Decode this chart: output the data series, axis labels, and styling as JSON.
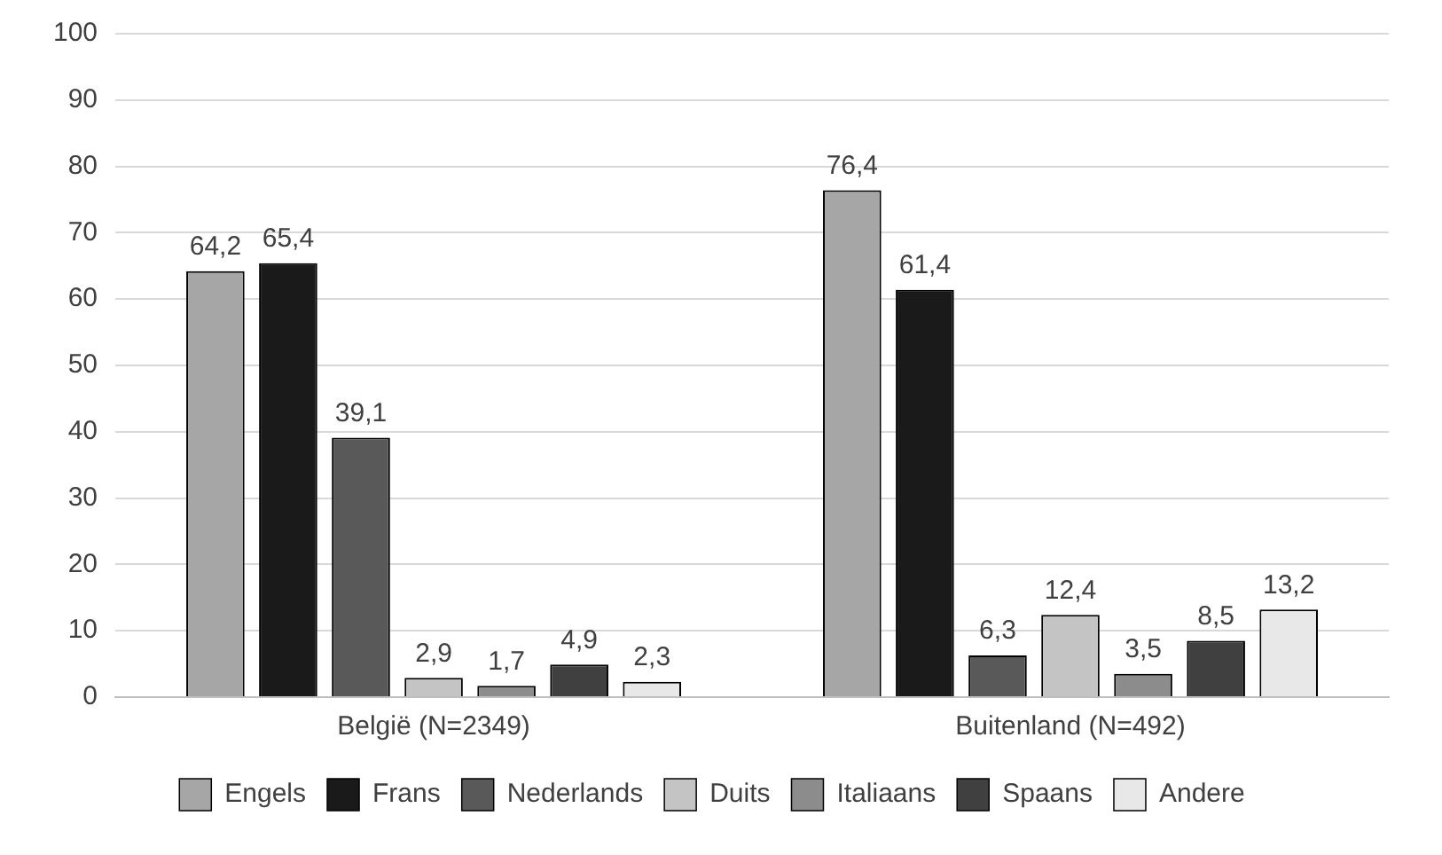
{
  "chart_data": {
    "type": "bar",
    "categories": [
      "België (N=2349)",
      "Buitenland (N=492)"
    ],
    "series": [
      {
        "name": "Engels",
        "color": "#a6a6a6",
        "values": [
          64.2,
          76.4
        ],
        "value_labels": [
          "64,2",
          "76,4"
        ]
      },
      {
        "name": "Frans",
        "color": "#1a1a1a",
        "values": [
          65.4,
          61.4
        ],
        "value_labels": [
          "65,4",
          "61,4"
        ]
      },
      {
        "name": "Nederlands",
        "color": "#595959",
        "values": [
          39.1,
          6.3
        ],
        "value_labels": [
          "39,1",
          "6,3"
        ]
      },
      {
        "name": "Duits",
        "color": "#c4c4c4",
        "values": [
          2.9,
          12.4
        ],
        "value_labels": [
          "2,9",
          "12,4"
        ]
      },
      {
        "name": "Italiaans",
        "color": "#8c8c8c",
        "values": [
          1.7,
          3.5
        ],
        "value_labels": [
          "1,7",
          "3,5"
        ]
      },
      {
        "name": "Spaans",
        "color": "#404040",
        "values": [
          4.9,
          8.5
        ],
        "value_labels": [
          "4,9",
          "8,5"
        ]
      },
      {
        "name": "Andere",
        "color": "#e8e8e8",
        "values": [
          2.3,
          13.2
        ],
        "value_labels": [
          "2,3",
          "13,2"
        ]
      }
    ],
    "ylim": [
      0,
      100
    ],
    "yticks": [
      0,
      10,
      20,
      30,
      40,
      50,
      60,
      70,
      80,
      90,
      100
    ],
    "grid": "y",
    "legend": "bottom"
  }
}
